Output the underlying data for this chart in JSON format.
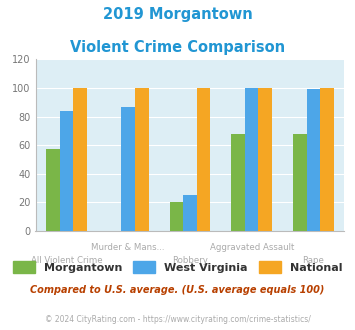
{
  "title_line1": "2019 Morgantown",
  "title_line2": "Violent Crime Comparison",
  "title_color": "#2196d3",
  "morgantown": [
    57,
    0,
    20,
    68,
    68
  ],
  "west_virginia": [
    84,
    87,
    25,
    100,
    99
  ],
  "national": [
    100,
    100,
    100,
    100,
    100
  ],
  "morgantown_color": "#7ab648",
  "west_virginia_color": "#4da6e8",
  "national_color": "#f5a623",
  "ylim": [
    0,
    120
  ],
  "yticks": [
    0,
    20,
    40,
    60,
    80,
    100,
    120
  ],
  "bg_color": "#ddeef5",
  "top_labels": [
    "",
    "Murder & Mans...",
    "",
    "Aggravated Assault",
    ""
  ],
  "bot_labels": [
    "All Violent Crime",
    "",
    "Robbery",
    "",
    "Rape"
  ],
  "legend_labels": [
    "Morgantown",
    "West Virginia",
    "National"
  ],
  "note_text": "Compared to U.S. average. (U.S. average equals 100)",
  "note_color": "#b84000",
  "footer_text": "© 2024 CityRating.com - https://www.cityrating.com/crime-statistics/",
  "footer_color": "#aaaaaa",
  "footer_link_color": "#4da6e8"
}
